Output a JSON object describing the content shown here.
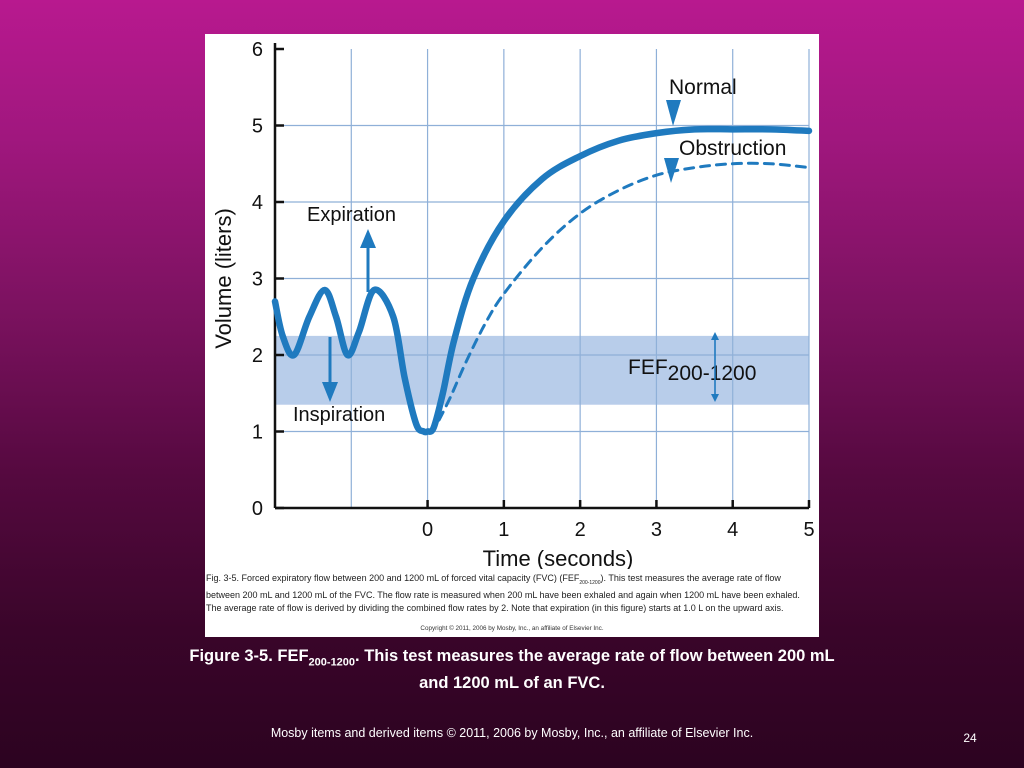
{
  "figure": {
    "chart_data": {
      "type": "line",
      "xlabel": "Time (seconds)",
      "ylabel": "Volume (liters)",
      "x_ticks": [
        "0",
        "1",
        "2",
        "3",
        "4",
        "5"
      ],
      "y_ticks": [
        "0",
        "1",
        "2",
        "3",
        "4",
        "5",
        "6"
      ],
      "xlim": [
        -2,
        5
      ],
      "ylim": [
        0,
        6
      ],
      "grid": true,
      "band": {
        "y_range": [
          1.35,
          2.25
        ],
        "label_main": "FEF",
        "label_sub": "200-1200"
      },
      "series": [
        {
          "name": "Normal",
          "style": "solid",
          "color": "#1f7abf",
          "x": [
            -2.0,
            -1.9,
            -1.75,
            -1.55,
            -1.35,
            -1.2,
            -1.05,
            -0.9,
            -0.7,
            -0.45,
            -0.3,
            -0.15,
            -0.05,
            0.0,
            0.08,
            0.2,
            0.35,
            0.6,
            1.0,
            1.5,
            2.0,
            2.5,
            3.0,
            3.5,
            4.0,
            4.5,
            5.0
          ],
          "y": [
            2.7,
            2.25,
            2.0,
            2.5,
            2.85,
            2.5,
            2.0,
            2.3,
            2.85,
            2.5,
            1.7,
            1.1,
            1.0,
            1.0,
            1.05,
            1.5,
            2.2,
            3.0,
            3.75,
            4.3,
            4.6,
            4.8,
            4.9,
            4.95,
            4.95,
            4.95,
            4.93
          ]
        },
        {
          "name": "Obstruction",
          "style": "dashed",
          "color": "#1f7abf",
          "x": [
            0.15,
            0.3,
            0.5,
            0.75,
            1.0,
            1.5,
            2.0,
            2.5,
            3.0,
            3.5,
            4.0,
            4.5,
            5.0
          ],
          "y": [
            1.15,
            1.45,
            1.9,
            2.4,
            2.8,
            3.4,
            3.85,
            4.15,
            4.35,
            4.45,
            4.5,
            4.5,
            4.45
          ]
        }
      ]
    },
    "annotations": {
      "expiration": "Expiration",
      "inspiration": "Inspiration",
      "normal": "Normal",
      "obstruction": "Obstruction"
    },
    "colors": {
      "curve": "#1f7abf",
      "band": "#b8cdea",
      "grid": "#8fb0d8"
    },
    "caption_small": {
      "part1": "Fig. 3-5. Forced expiratory flow between 200 and 1200 mL of forced vital capacity (FVC) (FEF",
      "sub": "200-1200",
      "part2": "). This test measures the average rate of flow between 200 mL and 1200 mL of the FVC. The flow rate is measured when 200 mL have been exhaled and again when 1200 mL have been exhaled. The average rate of flow is derived by dividing the combined flow rates by 2. Note that expiration (in this figure) starts at 1.0 L on the upward axis."
    },
    "copyright": "Copyright © 2011, 2006 by Mosby, Inc., an affiliate of Elsevier Inc."
  },
  "slide": {
    "caption_part1": "Figure 3-5. FEF",
    "caption_sub": "200-1200",
    "caption_part2": ". This test measures the average rate of flow between 200 mL and 1200 mL of an FVC.",
    "footer": "Mosby items and derived items © 2011, 2006 by Mosby, Inc., an affiliate of Elsevier Inc.",
    "page_number": "24"
  }
}
